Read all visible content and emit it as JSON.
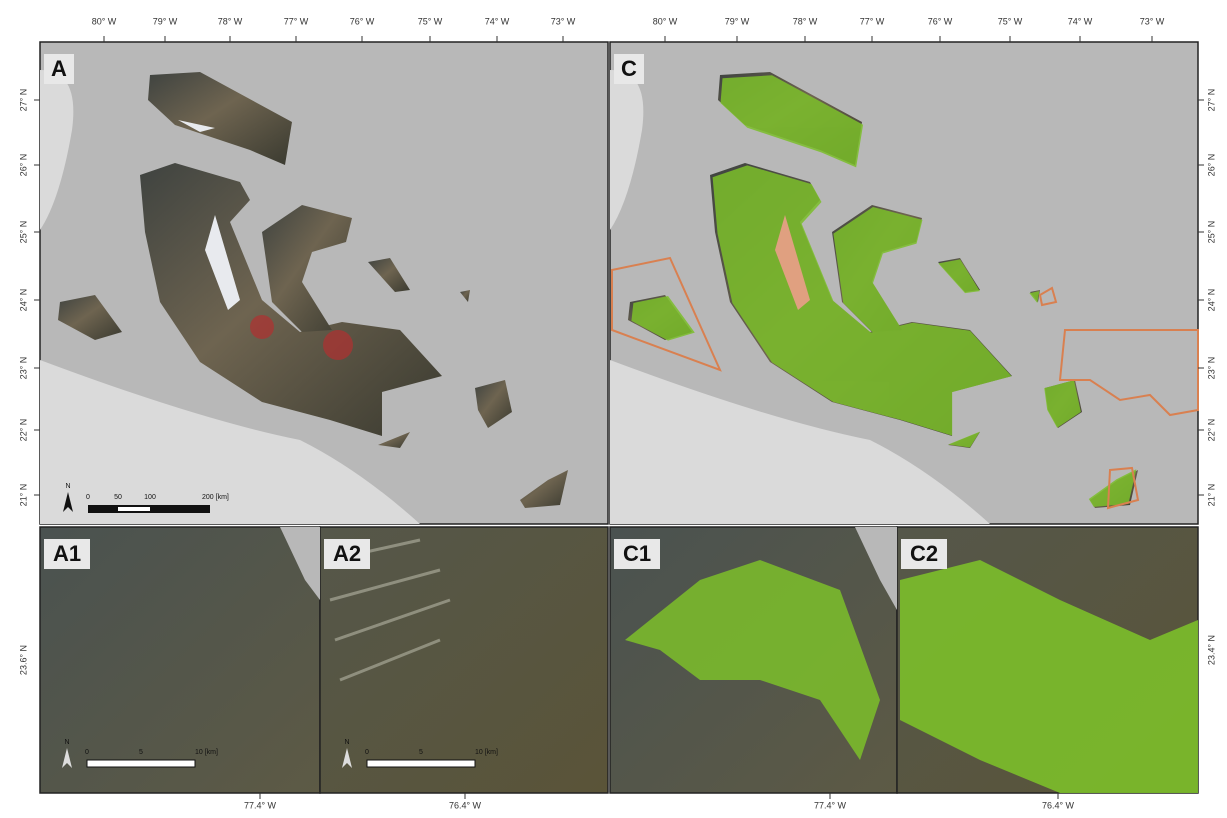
{
  "panels": {
    "main": [
      "A",
      "C"
    ],
    "insets": [
      "A1",
      "A2",
      "C1",
      "C2"
    ]
  },
  "longitude_ticks": [
    "80° W",
    "79° W",
    "78° W",
    "77° W",
    "76° W",
    "75° W",
    "74° W",
    "73° W"
  ],
  "latitude_ticks": [
    "27° N",
    "26° N",
    "25° N",
    "24° N",
    "23° N",
    "22° N",
    "21° N"
  ],
  "inset_axis": {
    "longitude": [
      "77.4° W",
      "76.4° W"
    ],
    "latitude_left": "23.6° N",
    "latitude_right": "23.4° N"
  },
  "scale_bar": {
    "north": "N",
    "labels": [
      "0",
      "50",
      "100",
      "200 [km]"
    ]
  },
  "inset_scale_bar": {
    "north": "N",
    "labels": [
      "0",
      "5",
      "10 [km]"
    ]
  }
}
